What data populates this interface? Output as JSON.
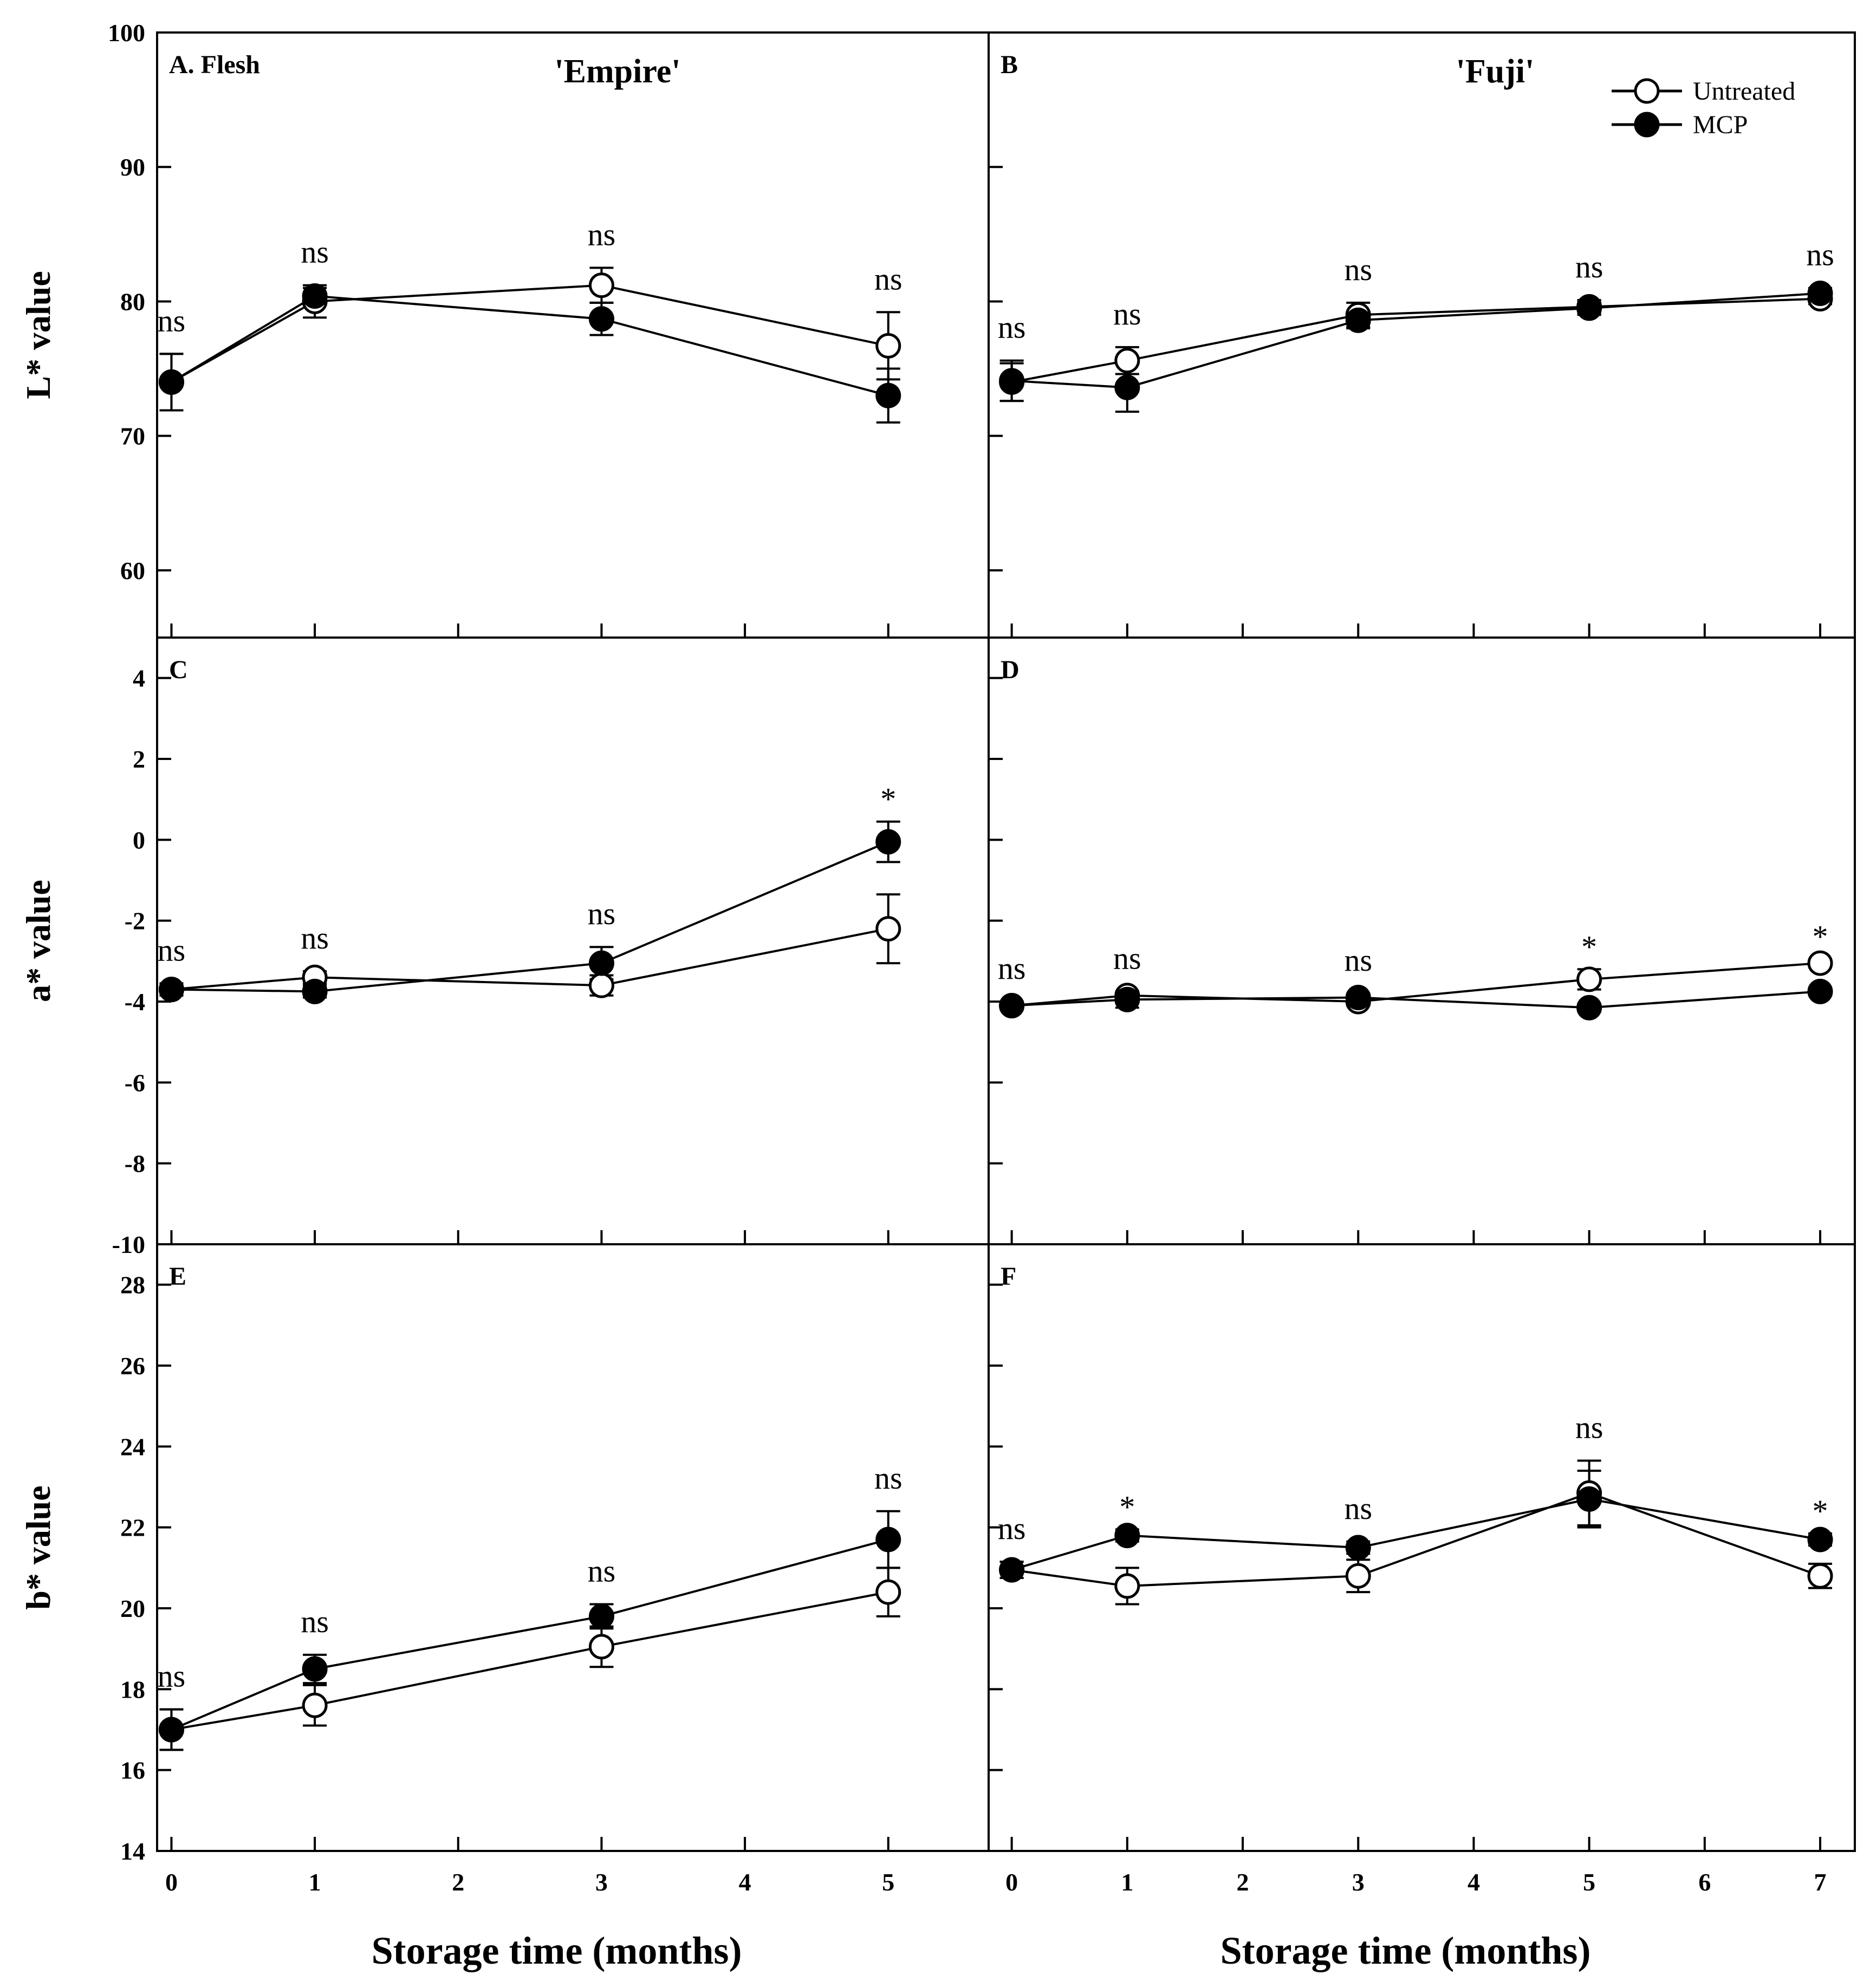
{
  "chart_data": {
    "type": "line",
    "legend": {
      "position": "top-right",
      "entries": [
        {
          "name": "Untreated",
          "marker": "open-circle"
        },
        {
          "name": "MCP",
          "marker": "filled-circle"
        }
      ]
    },
    "columns": [
      {
        "title": "'Empire'",
        "xlim": [
          -0.1,
          5.7
        ],
        "xticks": [
          "0",
          "1",
          "2",
          "3",
          "4",
          "5"
        ]
      },
      {
        "title": "'Fuji'",
        "xlim": [
          -0.2,
          7.3
        ],
        "xticks": [
          "0",
          "1",
          "2",
          "3",
          "4",
          "5",
          "6",
          "7"
        ]
      }
    ],
    "xlabel": "Storage time (months)",
    "rows": [
      {
        "ylabel": "L* value",
        "ylim": [
          55,
          100
        ],
        "yticks": [
          "60",
          "70",
          "80",
          "90",
          "100"
        ]
      },
      {
        "ylabel": "a* value",
        "ylim": [
          -10,
          5
        ],
        "yticks": [
          "-10",
          "-8",
          "-6",
          "-4",
          "-2",
          "0",
          "2",
          "4"
        ]
      },
      {
        "ylabel": "b* value",
        "ylim": [
          14,
          29
        ],
        "yticks": [
          "14",
          "16",
          "18",
          "20",
          "22",
          "24",
          "26",
          "28"
        ]
      }
    ],
    "panels": [
      {
        "label": "A. Flesh",
        "row": 0,
        "col": 0,
        "x": [
          0,
          1,
          3,
          5
        ],
        "series": [
          {
            "name": "Untreated",
            "values": [
              74.0,
              80.0,
              81.2,
              76.7
            ],
            "errors": [
              2.1,
              1.2,
              1.3,
              2.5
            ]
          },
          {
            "name": "MCP",
            "values": [
              74.0,
              80.4,
              78.7,
              73.0
            ],
            "errors": [
              2.1,
              0.6,
              1.2,
              2.0
            ]
          }
        ],
        "significance": [
          "ns",
          "ns",
          "ns",
          "ns"
        ]
      },
      {
        "label": "B",
        "row": 0,
        "col": 1,
        "x": [
          0,
          1,
          3,
          5,
          7
        ],
        "series": [
          {
            "name": "Untreated",
            "values": [
              74.0,
              75.6,
              79.0,
              79.6,
              80.2
            ],
            "errors": [
              1.4,
              1.0,
              0.9,
              0.5,
              0.4
            ]
          },
          {
            "name": "MCP",
            "values": [
              74.1,
              73.6,
              78.6,
              79.5,
              80.6
            ],
            "errors": [
              1.5,
              1.8,
              0.6,
              0.5,
              0.4
            ]
          }
        ],
        "significance": [
          "ns",
          "ns",
          "ns",
          "ns",
          "ns"
        ]
      },
      {
        "label": "C",
        "row": 1,
        "col": 0,
        "x": [
          0,
          1,
          3,
          5
        ],
        "series": [
          {
            "name": "Untreated",
            "values": [
              -3.7,
              -3.4,
              -3.6,
              -2.2
            ],
            "errors": [
              0.15,
              0.15,
              0.25,
              0.85
            ]
          },
          {
            "name": "MCP",
            "values": [
              -3.7,
              -3.75,
              -3.05,
              -0.05
            ],
            "errors": [
              0.15,
              0.15,
              0.4,
              0.5
            ]
          }
        ],
        "significance": [
          "ns",
          "ns",
          "ns",
          "*"
        ]
      },
      {
        "label": "D",
        "row": 1,
        "col": 1,
        "x": [
          0,
          1,
          3,
          5,
          7
        ],
        "series": [
          {
            "name": "Untreated",
            "values": [
              -4.1,
              -3.85,
              -4.0,
              -3.45,
              -3.05
            ],
            "errors": [
              0.1,
              0.1,
              0.1,
              0.25,
              0.1
            ]
          },
          {
            "name": "MCP",
            "values": [
              -4.1,
              -3.95,
              -3.9,
              -4.15,
              -3.75
            ],
            "errors": [
              0.1,
              0.2,
              0.1,
              0.1,
              0.1
            ]
          }
        ],
        "significance": [
          "ns",
          "ns",
          "ns",
          "*",
          "*"
        ]
      },
      {
        "label": "E",
        "row": 2,
        "col": 0,
        "x": [
          0,
          1,
          3,
          5
        ],
        "series": [
          {
            "name": "Untreated",
            "values": [
              17.0,
              17.6,
              19.05,
              20.4
            ],
            "errors": [
              0.5,
              0.5,
              0.5,
              0.6
            ]
          },
          {
            "name": "MCP",
            "values": [
              17.0,
              18.5,
              19.8,
              21.7
            ],
            "errors": [
              0.5,
              0.35,
              0.3,
              0.7
            ]
          }
        ],
        "significance": [
          "ns",
          "ns",
          "ns",
          "ns"
        ]
      },
      {
        "label": "F",
        "row": 2,
        "col": 1,
        "x": [
          0,
          1,
          3,
          5,
          7
        ],
        "series": [
          {
            "name": "Untreated",
            "values": [
              20.95,
              20.55,
              20.8,
              22.85,
              20.8
            ],
            "errors": [
              0.2,
              0.45,
              0.4,
              0.8,
              0.3
            ]
          },
          {
            "name": "MCP",
            "values": [
              20.95,
              21.8,
              21.5,
              22.7,
              21.7
            ],
            "errors": [
              0.2,
              0.15,
              0.15,
              0.7,
              0.15
            ]
          }
        ],
        "significance": [
          "ns",
          "*",
          "ns",
          "ns",
          "*"
        ]
      }
    ]
  }
}
